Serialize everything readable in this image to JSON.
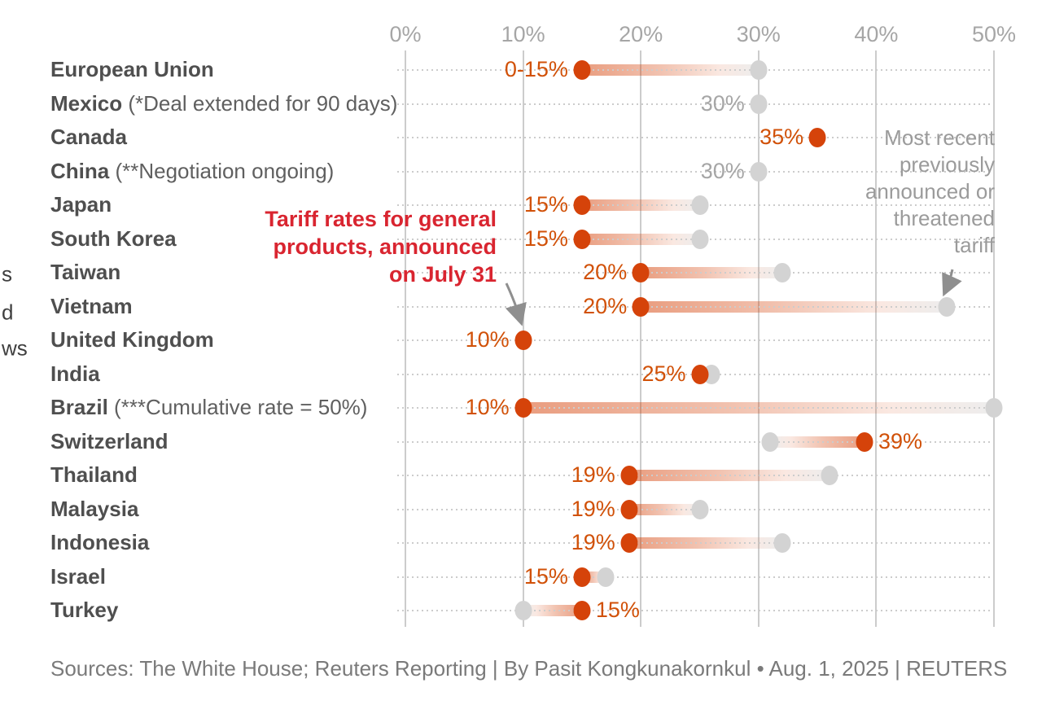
{
  "chart_data": {
    "type": "dumbbell",
    "unit": "%",
    "x_tick_values": [
      0,
      10,
      20,
      30,
      40,
      50
    ],
    "x_tick_labels": [
      "0%",
      "10%",
      "20%",
      "30%",
      "40%",
      "50%"
    ],
    "x_range": [
      0,
      50
    ],
    "grid": "vertical",
    "series": [
      {
        "key": "announced",
        "name": "Tariff rates for general products, announced on July 31",
        "color": "#d5430a"
      },
      {
        "key": "previous",
        "name": "Most recent previously announced or threatened tariff",
        "color": "#d3d3d3"
      }
    ],
    "rows": [
      {
        "country": "European Union",
        "note": "",
        "announced": 15,
        "previous": 30,
        "value_label": "0-15%",
        "label_side": "left"
      },
      {
        "country": "Mexico",
        "note": "(*Deal extended for 90 days)",
        "announced": null,
        "previous": 30,
        "value_label": "30%",
        "label_side": "left"
      },
      {
        "country": "Canada",
        "note": "",
        "announced": 35,
        "previous": null,
        "value_label": "35%",
        "label_side": "left"
      },
      {
        "country": "China",
        "note": "(**Negotiation ongoing)",
        "announced": null,
        "previous": 30,
        "value_label": "30%",
        "label_side": "left"
      },
      {
        "country": "Japan",
        "note": "",
        "announced": 15,
        "previous": 25,
        "value_label": "15%",
        "label_side": "left"
      },
      {
        "country": "South Korea",
        "note": "",
        "announced": 15,
        "previous": 25,
        "value_label": "15%",
        "label_side": "left"
      },
      {
        "country": "Taiwan",
        "note": "",
        "announced": 20,
        "previous": 32,
        "value_label": "20%",
        "label_side": "left"
      },
      {
        "country": "Vietnam",
        "note": "",
        "announced": 20,
        "previous": 46,
        "value_label": "20%",
        "label_side": "left"
      },
      {
        "country": "United Kingdom",
        "note": "",
        "announced": 10,
        "previous": null,
        "value_label": "10%",
        "label_side": "left"
      },
      {
        "country": "India",
        "note": "",
        "announced": 25,
        "previous": 26,
        "value_label": "25%",
        "label_side": "left"
      },
      {
        "country": "Brazil",
        "note": "(***Cumulative rate = 50%)",
        "announced": 10,
        "previous": 50,
        "value_label": "10%",
        "label_side": "left"
      },
      {
        "country": "Switzerland",
        "note": "",
        "announced": 39,
        "previous": 31,
        "value_label": "39%",
        "label_side": "right"
      },
      {
        "country": "Thailand",
        "note": "",
        "announced": 19,
        "previous": 36,
        "value_label": "19%",
        "label_side": "left"
      },
      {
        "country": "Malaysia",
        "note": "",
        "announced": 19,
        "previous": 25,
        "value_label": "19%",
        "label_side": "left"
      },
      {
        "country": "Indonesia",
        "note": "",
        "announced": 19,
        "previous": 32,
        "value_label": "19%",
        "label_side": "left"
      },
      {
        "country": "Israel",
        "note": "",
        "announced": 15,
        "previous": 17,
        "value_label": "15%",
        "label_side": "left"
      },
      {
        "country": "Turkey",
        "note": "",
        "announced": 15,
        "previous": 10,
        "value_label": "15%",
        "label_side": "right"
      }
    ]
  },
  "annotations": {
    "announced_note_lines": [
      "Tariff rates for general",
      "products, announced",
      "on July 31"
    ],
    "previous_note_lines": [
      "Most recent",
      "previously",
      "announced or",
      "threatened",
      "tariff"
    ]
  },
  "edge_fragments": [
    {
      "text": "s"
    },
    {
      "text": "d"
    },
    {
      "text": "ws"
    }
  ],
  "footer": {
    "text": "Sources: The White House; Reuters Reporting | By Pasit Kongkunakornkul • Aug. 1, 2025 | REUTERS"
  },
  "colors": {
    "background": "#ffffff",
    "announced_dot": "#d5430a",
    "previous_dot": "#d3d3d3",
    "value_label_red": "#d15108",
    "value_label_gray": "#a6a6a6",
    "annotation_red": "#d92530",
    "annotation_gray": "#9b9b9b",
    "grid": "#cccccc",
    "country_label": "#4f4f4f",
    "country_note": "#5f5f5f",
    "tick_label": "#a6a6a6",
    "footer": "#7a7a7a",
    "arrow": "#8f8f8f",
    "edge_fragment": "#3f3f3f"
  }
}
